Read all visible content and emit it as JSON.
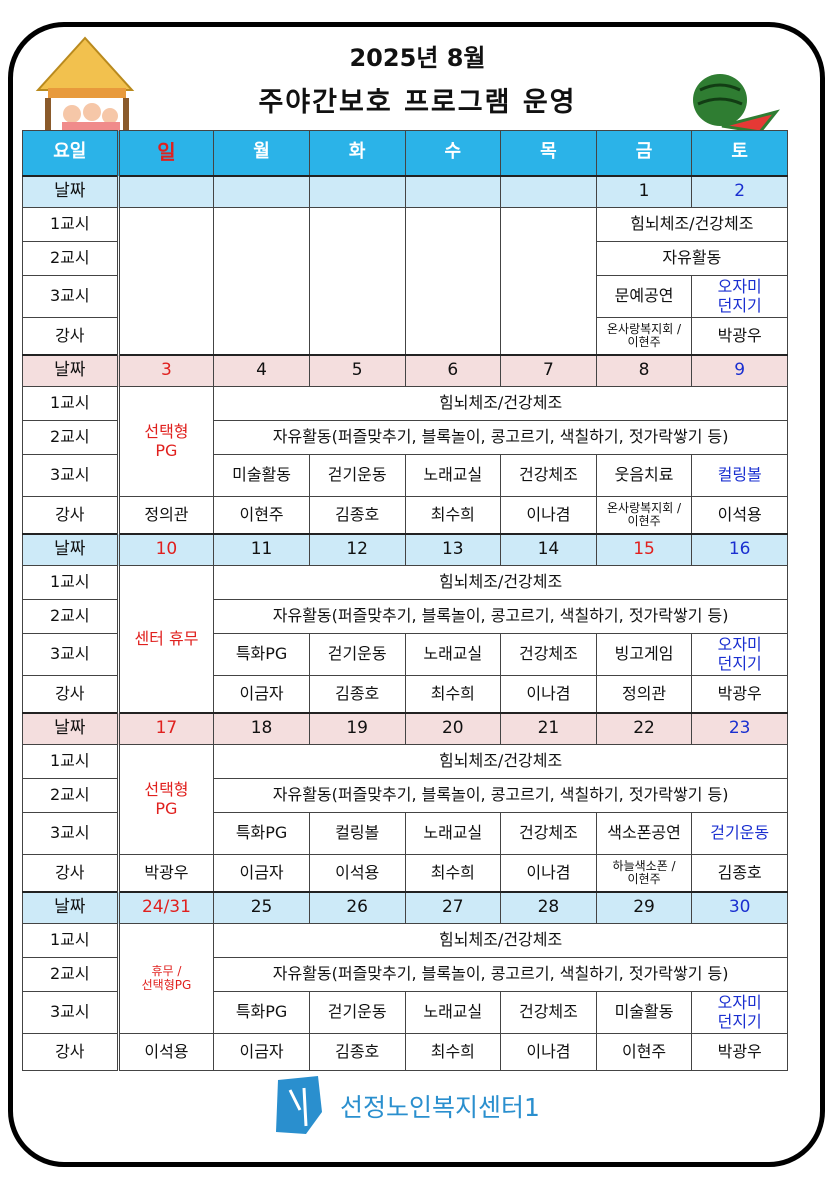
{
  "header": {
    "title": "2025년 8월",
    "subtitle": "주야간보호 프로그램 운영"
  },
  "table": {
    "day_label": "요일",
    "days": [
      "일",
      "월",
      "화",
      "수",
      "목",
      "금",
      "토"
    ],
    "row_labels": [
      "날짜",
      "1교시",
      "2교시",
      "3교시",
      "강사"
    ],
    "weeks": [
      {
        "dates": [
          null,
          null,
          null,
          null,
          null,
          1,
          2
        ],
        "period1": "힘뇌체조/건강체조",
        "period2": "자유활동",
        "period3": [
          null,
          null,
          null,
          null,
          null,
          "문예공연",
          "오자미 던지기"
        ],
        "instructors": [
          null,
          null,
          null,
          null,
          null,
          "온사랑복지회 / 이현주",
          "박광우"
        ]
      },
      {
        "dates": [
          3,
          4,
          5,
          6,
          7,
          8,
          9
        ],
        "sunday": "선택형 PG",
        "period1": "힘뇌체조/건강체조",
        "period2": "자유활동(퍼즐맞추기, 블록놀이, 콩고르기, 색칠하기, 젓가락쌓기 등)",
        "period3": [
          null,
          "미술활동",
          "걷기운동",
          "노래교실",
          "건강체조",
          "웃음치료",
          "컬링볼"
        ],
        "instructors": [
          "정의관",
          "이현주",
          "김종호",
          "최수희",
          "이나겸",
          "온사랑복지회 / 이현주",
          "이석용"
        ]
      },
      {
        "dates": [
          10,
          11,
          12,
          13,
          14,
          15,
          16
        ],
        "sunday": "센터 휴무",
        "period1": "힘뇌체조/건강체조",
        "period2": "자유활동(퍼즐맞추기, 블록놀이, 콩고르기, 색칠하기, 젓가락쌓기 등)",
        "period3": [
          null,
          "특화PG",
          "걷기운동",
          "노래교실",
          "건강체조",
          "빙고게임",
          "오자미 던지기"
        ],
        "instructors": [
          null,
          "이금자",
          "김종호",
          "최수희",
          "이나겸",
          "정의관",
          "박광우"
        ]
      },
      {
        "dates": [
          17,
          18,
          19,
          20,
          21,
          22,
          23
        ],
        "sunday": "선택형 PG",
        "period1": "힘뇌체조/건강체조",
        "period2": "자유활동(퍼즐맞추기, 블록놀이, 콩고르기, 색칠하기, 젓가락쌓기 등)",
        "period3": [
          null,
          "특화PG",
          "컬링볼",
          "노래교실",
          "건강체조",
          "색소폰공연",
          "걷기운동"
        ],
        "instructors": [
          "박광우",
          "이금자",
          "이석용",
          "최수희",
          "이나겸",
          "하늘색소폰 / 이현주",
          "김종호"
        ]
      },
      {
        "dates": [
          "24/31",
          25,
          26,
          27,
          28,
          29,
          30
        ],
        "sunday": "휴무 / 선택형PG",
        "period1": "힘뇌체조/건강체조",
        "period2": "자유활동(퍼즐맞추기, 블록놀이, 콩고르기, 색칠하기, 젓가락쌓기 등)",
        "period3": [
          null,
          "특화PG",
          "걷기운동",
          "노래교실",
          "건강체조",
          "미술활동",
          "오자미 던지기"
        ],
        "instructors": [
          "이석용",
          "이금자",
          "김종호",
          "최수희",
          "이나겸",
          "이현주",
          "박광우"
        ]
      }
    ]
  },
  "footer": {
    "org_name": "선정노인복지센터1"
  }
}
